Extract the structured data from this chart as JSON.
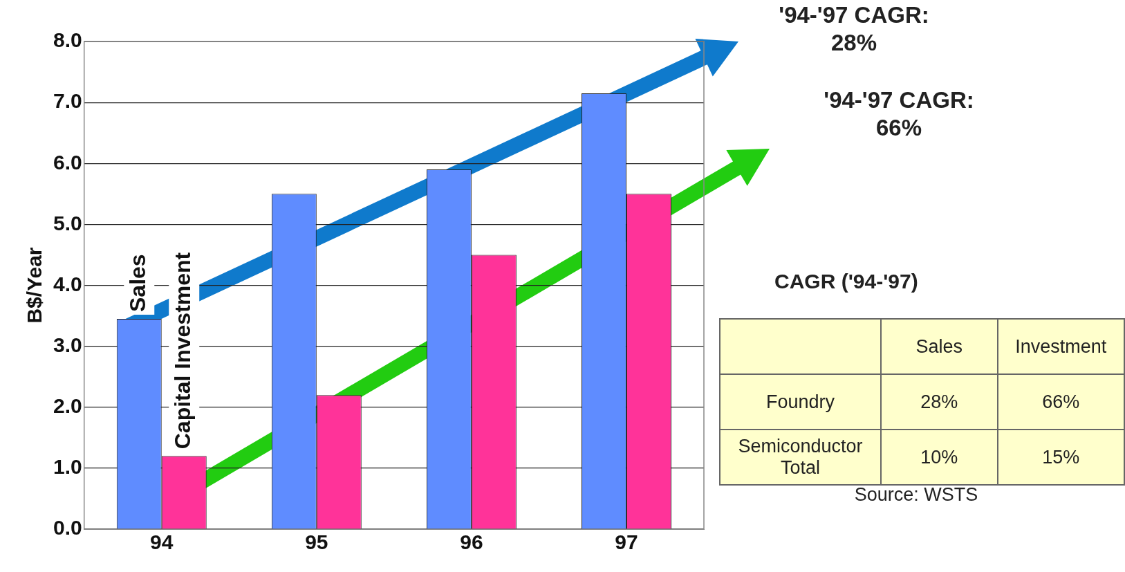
{
  "chart_data": {
    "type": "bar",
    "ylabel": "B$/Year",
    "categories": [
      "94",
      "95",
      "96",
      "97"
    ],
    "series": [
      {
        "name": "Sales",
        "color": "#5f8cff",
        "values": [
          3.45,
          5.5,
          5.9,
          7.15
        ]
      },
      {
        "name": "Capital Investment",
        "color": "#ff3399",
        "values": [
          1.2,
          2.2,
          4.5,
          5.5
        ]
      }
    ],
    "ylim": [
      0,
      8
    ],
    "yticks": [
      {
        "value": 0,
        "label": "0.0"
      },
      {
        "value": 1,
        "label": "1.0"
      },
      {
        "value": 2,
        "label": "2.0"
      },
      {
        "value": 3,
        "label": "3.0"
      },
      {
        "value": 4,
        "label": "4.0"
      },
      {
        "value": 5,
        "label": "5.0"
      },
      {
        "value": 6,
        "label": "6.0"
      },
      {
        "value": 7,
        "label": "7.0"
      },
      {
        "value": 8,
        "label": "8.0"
      }
    ],
    "grid": "y",
    "legend": false,
    "annotations": [
      "'94-'97 CAGR: 28%",
      "'94-'97 CAGR: 66%",
      "CAGR ('94-'97)",
      "Sales",
      "Investment",
      "Foundry",
      "28%",
      "66%",
      "Semiconductor Total",
      "10%",
      "15%",
      "Source: WSTS"
    ]
  }
}
